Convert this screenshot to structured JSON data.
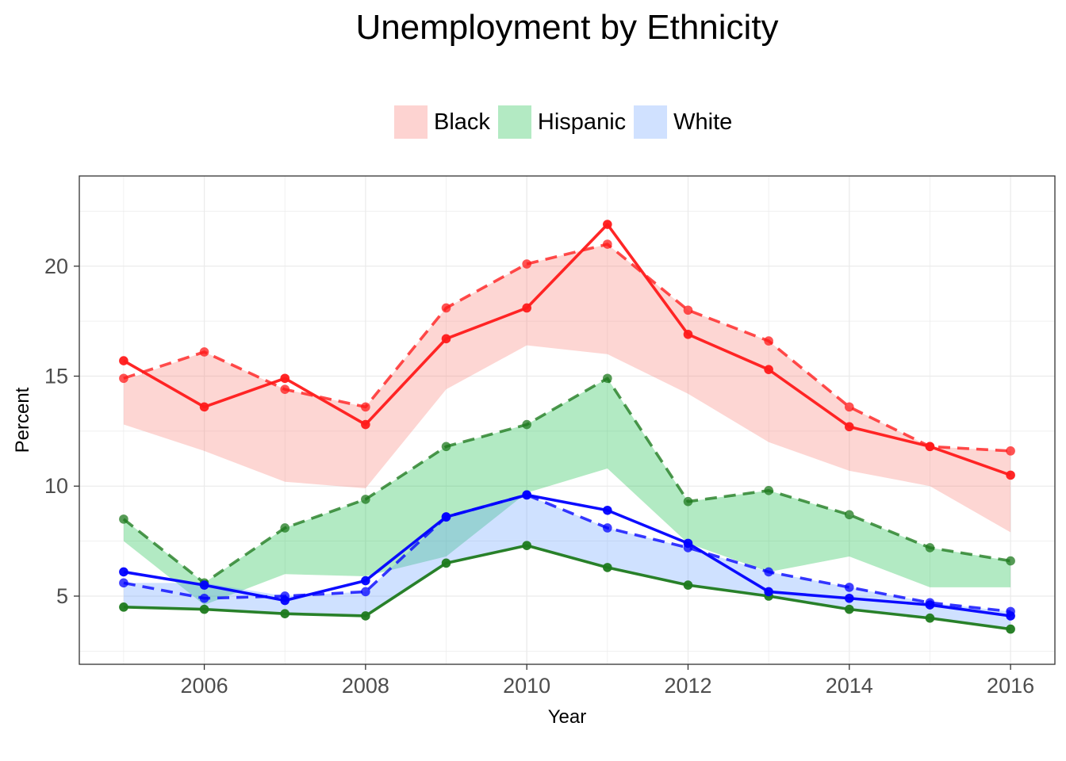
{
  "chart_data": {
    "type": "line",
    "title": "Unemployment by Ethnicity",
    "xlabel": "Year",
    "ylabel": "Percent",
    "xlim": [
      2004.45,
      2016.55
    ],
    "ylim": [
      1.9,
      24.1
    ],
    "x_ticks": [
      "2006",
      "2008",
      "2010",
      "2012",
      "2014",
      "2016"
    ],
    "y_ticks": [
      "5",
      "10",
      "15",
      "20"
    ],
    "grid": true,
    "legend_position": "top",
    "x": [
      2005,
      2006,
      2007,
      2008,
      2009,
      2010,
      2011,
      2012,
      2013,
      2014,
      2015,
      2016
    ],
    "series": [
      {
        "name": "Black",
        "color": "#ff1a1a",
        "fill": "#f8766d",
        "ribbon_lower": [
          12.8,
          11.6,
          10.2,
          9.9,
          14.4,
          16.4,
          16.0,
          14.2,
          12.0,
          10.7,
          10.0,
          7.9
        ],
        "ribbon_upper": [
          14.8,
          16.1,
          14.4,
          13.6,
          18.1,
          20.1,
          21.0,
          18.0,
          16.6,
          13.6,
          11.8,
          11.6
        ],
        "solid": [
          15.7,
          13.6,
          14.9,
          12.8,
          16.7,
          18.1,
          21.9,
          16.9,
          15.3,
          12.7,
          11.8,
          10.5
        ],
        "dashed": [
          14.9,
          16.1,
          14.4,
          13.6,
          18.1,
          20.1,
          21.0,
          18.0,
          16.6,
          13.6,
          11.8,
          11.6
        ]
      },
      {
        "name": "Hispanic",
        "color": "#1e7a1e",
        "fill": "#00ba38",
        "ribbon_lower": [
          7.5,
          4.6,
          6.0,
          5.9,
          6.8,
          9.7,
          10.8,
          7.4,
          6.1,
          6.8,
          5.4,
          5.4
        ],
        "ribbon_upper": [
          8.5,
          5.6,
          8.1,
          9.4,
          11.8,
          12.8,
          14.9,
          9.3,
          9.8,
          8.7,
          7.2,
          6.6
        ],
        "solid": [
          4.5,
          4.4,
          4.2,
          4.1,
          6.5,
          7.3,
          6.3,
          5.5,
          5.0,
          4.4,
          4.0,
          3.5
        ],
        "dashed": [
          8.5,
          5.6,
          8.1,
          9.4,
          11.8,
          12.8,
          14.9,
          9.3,
          9.8,
          8.7,
          7.2,
          6.6
        ]
      },
      {
        "name": "White",
        "color": "#0000ff",
        "fill": "#619cff",
        "ribbon_lower": [
          4.5,
          4.4,
          4.2,
          4.1,
          6.5,
          7.3,
          6.3,
          5.5,
          5.0,
          4.4,
          4.0,
          3.5
        ],
        "ribbon_upper": [
          5.6,
          5.6,
          5.0,
          5.2,
          8.6,
          9.6,
          8.1,
          7.2,
          6.1,
          5.4,
          4.7,
          4.3
        ],
        "solid": [
          6.1,
          5.5,
          4.8,
          5.7,
          8.6,
          9.6,
          8.9,
          7.4,
          5.2,
          4.9,
          4.6,
          4.1
        ],
        "dashed": [
          5.6,
          4.9,
          5.0,
          5.2,
          8.6,
          9.6,
          8.1,
          7.2,
          6.1,
          5.4,
          4.7,
          4.3
        ]
      }
    ]
  }
}
